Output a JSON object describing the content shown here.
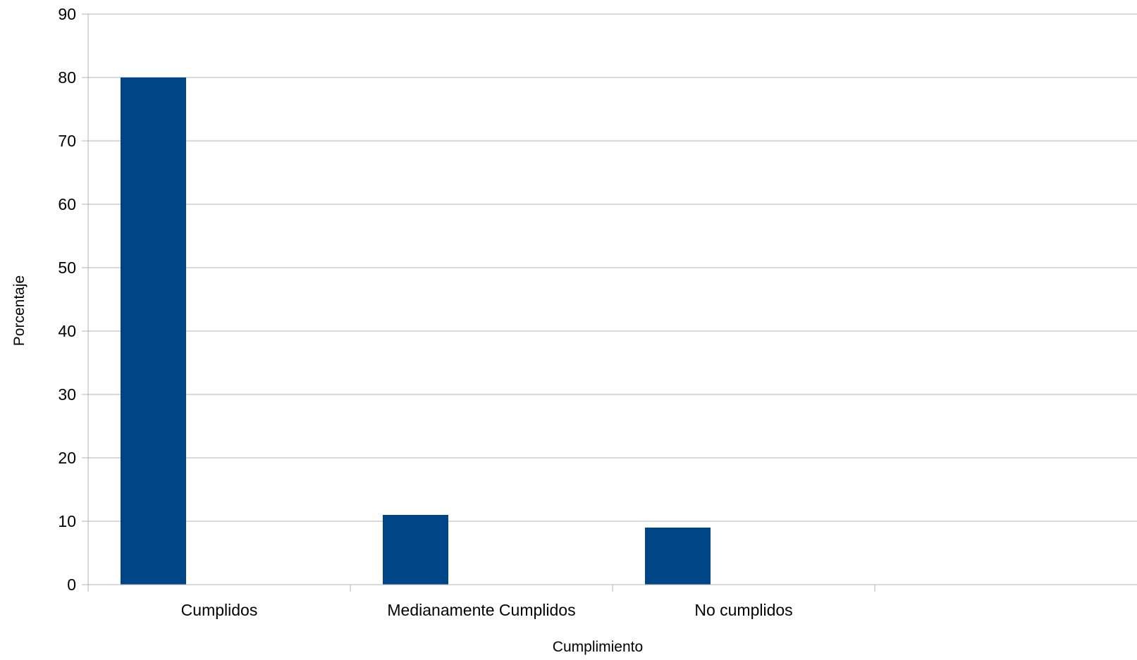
{
  "chart_data": {
    "type": "bar",
    "categories": [
      "Cumplidos",
      "Medianamente Cumplidos",
      "No cumplidos",
      ""
    ],
    "values": [
      80,
      11,
      9,
      null
    ],
    "xlabel": "Cumplimiento",
    "ylabel": "Porcentaje",
    "ylim": [
      0,
      90
    ],
    "yticks": [
      0,
      10,
      20,
      30,
      40,
      50,
      60,
      70,
      80,
      90
    ],
    "grid": true,
    "legend": "none",
    "bar_color": "#004586",
    "grid_color": "#b3b3b3"
  }
}
